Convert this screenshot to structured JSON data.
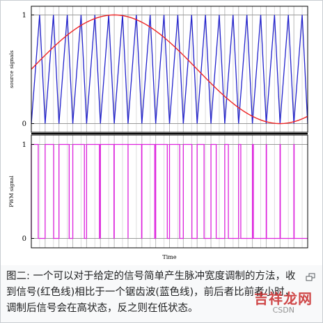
{
  "chart_data": [
    {
      "type": "line",
      "ylabel": "source signals",
      "ylim": [
        -0.08,
        1.08
      ],
      "xlim": [
        0,
        1
      ],
      "yticks": [
        "0",
        "1"
      ],
      "grid": true,
      "series": [
        {
          "style": "sawtooth",
          "color": "#2222cc",
          "x": [
            0.0,
            0.03,
            0.05,
            0.08,
            0.1,
            0.13,
            0.15,
            0.18,
            0.2,
            0.23,
            0.25,
            0.28,
            0.3,
            0.33,
            0.35,
            0.38,
            0.4,
            0.43,
            0.45,
            0.48,
            0.5,
            0.53,
            0.55,
            0.58,
            0.6,
            0.63,
            0.65,
            0.68,
            0.7,
            0.73,
            0.75,
            0.78,
            0.8,
            0.83,
            0.85,
            0.88,
            0.9,
            0.93,
            0.95,
            0.98,
            1.0
          ],
          "values": [
            0,
            1,
            0,
            1,
            0,
            1,
            0,
            1,
            0,
            1,
            0,
            1,
            0,
            1,
            0,
            1,
            0,
            1,
            0,
            1,
            0,
            1,
            0,
            1,
            0,
            1,
            0,
            1,
            0,
            1,
            0,
            1,
            0,
            1,
            0,
            1,
            0,
            1,
            0,
            1,
            0
          ]
        },
        {
          "style": "sine",
          "color": "#ee2222",
          "x": [
            0.0,
            0.05,
            0.1,
            0.15,
            0.2,
            0.25,
            0.3,
            0.35,
            0.4,
            0.45,
            0.5,
            0.55,
            0.6,
            0.65,
            0.7,
            0.75,
            0.8,
            0.85,
            0.9,
            0.95,
            1.0
          ],
          "values": [
            0.5,
            0.62,
            0.74,
            0.84,
            0.93,
            0.98,
            1.0,
            0.98,
            0.93,
            0.84,
            0.74,
            0.62,
            0.5,
            0.38,
            0.26,
            0.16,
            0.07,
            0.02,
            0.0,
            0.02,
            0.07
          ]
        }
      ]
    },
    {
      "type": "line",
      "ylabel": "PWM signal",
      "xlabel": "Time",
      "ylim": [
        -0.1,
        1.1
      ],
      "xlim": [
        0,
        1
      ],
      "yticks": [
        "0",
        "1"
      ],
      "grid": true,
      "series": [
        {
          "style": "pwm",
          "color": "#dd22dd",
          "x": [
            0.0,
            0.05,
            0.1,
            0.15,
            0.2,
            0.25,
            0.3,
            0.35,
            0.4,
            0.45,
            0.5,
            0.55,
            0.6,
            0.65,
            0.7,
            0.75,
            0.8,
            0.85,
            0.9,
            0.95
          ],
          "duty": [
            0.5,
            0.62,
            0.74,
            0.84,
            0.93,
            0.98,
            1.0,
            0.98,
            0.93,
            0.84,
            0.74,
            0.62,
            0.5,
            0.38,
            0.26,
            0.16,
            0.07,
            0.02,
            0.0,
            0.02
          ]
        }
      ]
    }
  ],
  "caption": {
    "text": "图二: 一个可以对于给定的信号简单产生脉冲宽度调制的方法，收到信号(红色线)相比于一个锯齿波(蓝色线)，前后者比前者小时，调制后信号会在高状态，反之则在低状态。"
  },
  "watermark": {
    "text": "吉祥龙网",
    "sub": "CSDN"
  },
  "icons": {
    "magnify": "magnify-icon"
  }
}
